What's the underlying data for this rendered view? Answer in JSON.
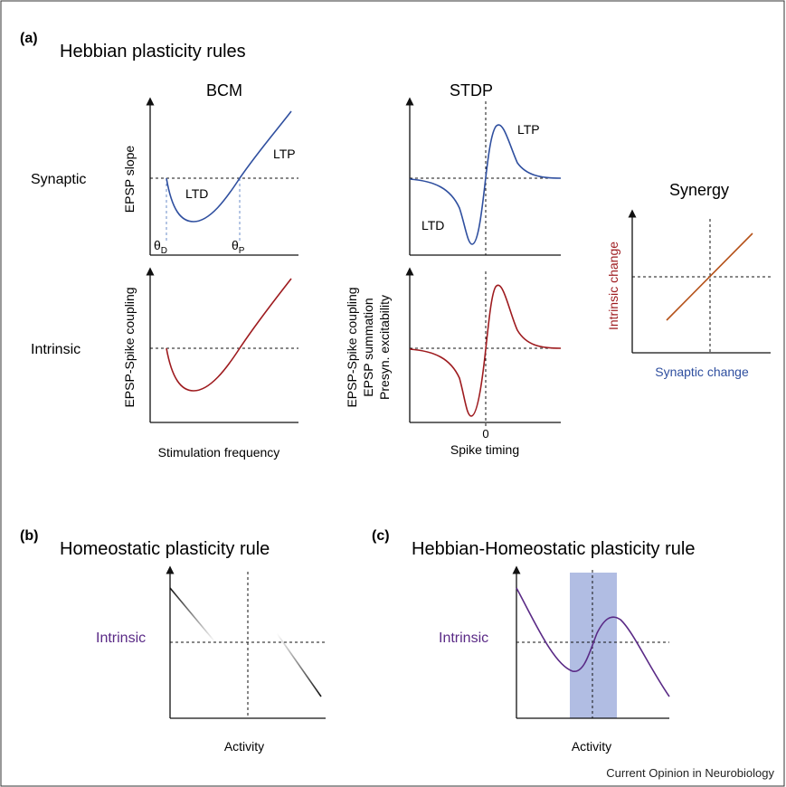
{
  "panel_a": {
    "letter": "(a)",
    "title": "Hebbian plasticity rules",
    "col_bcm": "BCM",
    "col_stdp": "STDP",
    "row_synaptic": "Synaptic",
    "row_intrinsic": "Intrinsic",
    "bcm_synaptic": {
      "ylabel": "EPSP slope",
      "ltd": "LTD",
      "ltp": "LTP",
      "theta_d": "θ",
      "theta_d_sub": "D",
      "theta_p": "θ",
      "theta_p_sub": "P"
    },
    "bcm_intrinsic": {
      "ylabel": "EPSP-Spike coupling",
      "xlabel": "Stimulation frequency"
    },
    "stdp_synaptic": {
      "ltd": "LTD",
      "ltp": "LTP"
    },
    "stdp_intrinsic": {
      "ylabel_1": "EPSP-Spike coupling",
      "ylabel_2": "EPSP summation",
      "ylabel_3": "Presyn. excitability",
      "zero_tick": "0",
      "xlabel": "Spike timing"
    },
    "synergy": {
      "title": "Synergy",
      "ylabel": "Intrinsic change",
      "xlabel": "Synaptic change"
    }
  },
  "panel_b": {
    "letter": "(b)",
    "title": "Homeostatic plasticity rule",
    "ylabel": "Intrinsic",
    "xlabel": "Activity"
  },
  "panel_c": {
    "letter": "(c)",
    "title": "Hebbian-Homeostatic plasticity rule",
    "ylabel": "Intrinsic",
    "xlabel": "Activity"
  },
  "footer": {
    "journal": "Current Opinion in Neurobiology"
  },
  "colors": {
    "synaptic": "#2f4f9f",
    "intrinsic": "#9e1b1f",
    "synergy_line": "#b5521a",
    "purple": "#5a2a86",
    "band": "#a8b6e0",
    "axis": "#111111"
  }
}
